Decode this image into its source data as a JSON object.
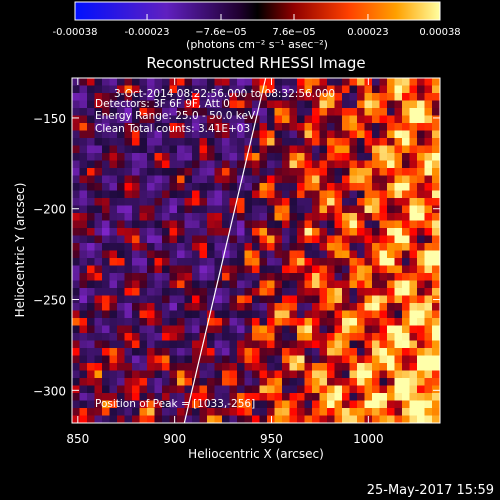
{
  "colorbar": {
    "ticks": [
      "-0.00038",
      "-0.00023",
      "−7.6e−05",
      "7.6e−05",
      "0.00023",
      "0.00038"
    ],
    "tick_values": [
      -0.00038,
      -0.00023,
      -7.6e-05,
      7.6e-05,
      0.00023,
      0.00038
    ],
    "range": [
      -0.00038,
      0.00038
    ],
    "units": "(photons cm⁻² s⁻¹ asec⁻²)",
    "colors": [
      "#0000ff",
      "#8000a0",
      "#000000",
      "#c03000",
      "#ff8000",
      "#ffff80"
    ]
  },
  "title": "Reconstructed RHESSI Image",
  "info": {
    "line1": "3-Oct-2014 08:22:56.000 to 08:32:56.000",
    "line2": "Detectors: 3F 6F 9F, Att 0",
    "line3": "Energy Range: 25.0 - 50.0 keV",
    "line4": "Clean     Total counts: 3.41E+03"
  },
  "peak": "Position of Peak = [1033,-256]",
  "footer_date": "25-May-2017 15:59",
  "chart_data": {
    "type": "heatmap",
    "title": "Reconstructed RHESSI Image",
    "xlabel": "Heliocentric X (arcsec)",
    "ylabel": "Heliocentric Y (arcsec)",
    "xlim": [
      847,
      1037
    ],
    "ylim": [
      -318,
      -128
    ],
    "xticks": [
      850,
      900,
      950,
      1000
    ],
    "yticks": [
      -150,
      -200,
      -250,
      -300
    ],
    "limb_line": [
      [
        905,
        -318
      ],
      [
        947,
        -128
      ]
    ],
    "peak_position": [
      1033,
      -256
    ],
    "colormap": "blue-purple-black-red-yellow",
    "grid": false
  }
}
